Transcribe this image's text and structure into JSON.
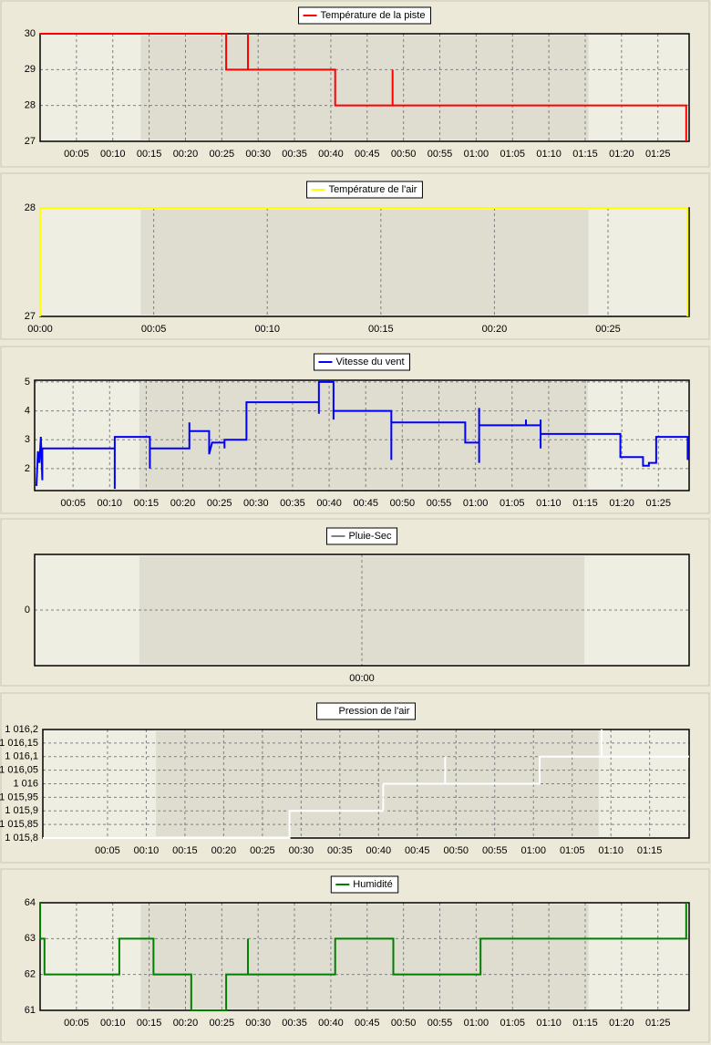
{
  "chart_data": [
    {
      "type": "line",
      "grid": true,
      "xlim": [
        0,
        89.3
      ],
      "ylim": [
        27,
        30
      ],
      "yticks": [
        27,
        28,
        29,
        30
      ],
      "xticks": [
        {
          "value": 5,
          "label": "00:05"
        },
        {
          "value": 10,
          "label": "00:10"
        },
        {
          "value": 15,
          "label": "00:15"
        },
        {
          "value": 20,
          "label": "00:20"
        },
        {
          "value": 25,
          "label": "00:25"
        },
        {
          "value": 30,
          "label": "00:30"
        },
        {
          "value": 35,
          "label": "00:35"
        },
        {
          "value": 40,
          "label": "00:40"
        },
        {
          "value": 45,
          "label": "00:45"
        },
        {
          "value": 50,
          "label": "00:50"
        },
        {
          "value": 55,
          "label": "00:55"
        },
        {
          "value": 60,
          "label": "01:00"
        },
        {
          "value": 65,
          "label": "01:05"
        },
        {
          "value": 70,
          "label": "01:10"
        },
        {
          "value": 75,
          "label": "01:15"
        },
        {
          "value": 80,
          "label": "01:20"
        },
        {
          "value": 85,
          "label": "01:25"
        }
      ],
      "series": [
        {
          "name": "Température de la piste",
          "color": "#ff0000",
          "x": [
            0,
            25.6,
            25.6,
            28.6,
            28.6,
            28.6,
            40.6,
            40.6,
            48.5,
            48.5,
            48.5,
            88.9,
            88.9
          ],
          "values": [
            30,
            30,
            29,
            29,
            30,
            29,
            29,
            28,
            28,
            29,
            28,
            28,
            27
          ]
        }
      ]
    },
    {
      "type": "line",
      "grid": true,
      "xlim": [
        0,
        28.57
      ],
      "ylim": [
        27,
        28
      ],
      "yticks": [
        27,
        28
      ],
      "xticks": [
        {
          "value": 0,
          "label": "00:00"
        },
        {
          "value": 5,
          "label": "00:05"
        },
        {
          "value": 10,
          "label": "00:10"
        },
        {
          "value": 15,
          "label": "00:15"
        },
        {
          "value": 20,
          "label": "00:20"
        },
        {
          "value": 25,
          "label": "00:25"
        }
      ],
      "series": [
        {
          "name": "Température de l'air",
          "color": "#ffff00",
          "x": [
            0,
            0,
            28.5,
            28.5
          ],
          "values": [
            27,
            28,
            28,
            27
          ]
        }
      ]
    },
    {
      "type": "line",
      "grid": true,
      "xlim": [
        -0.25,
        89.2
      ],
      "ylim": [
        1.24,
        5.06
      ],
      "yticks": [
        2,
        3,
        4,
        5
      ],
      "xticks": [
        {
          "value": 5,
          "label": "00:05"
        },
        {
          "value": 10,
          "label": "00:10"
        },
        {
          "value": 15,
          "label": "00:15"
        },
        {
          "value": 20,
          "label": "00:20"
        },
        {
          "value": 25,
          "label": "00:25"
        },
        {
          "value": 30,
          "label": "00:30"
        },
        {
          "value": 35,
          "label": "00:35"
        },
        {
          "value": 40,
          "label": "00:40"
        },
        {
          "value": 45,
          "label": "00:45"
        },
        {
          "value": 50,
          "label": "00:50"
        },
        {
          "value": 55,
          "label": "00:55"
        },
        {
          "value": 60,
          "label": "01:00"
        },
        {
          "value": 65,
          "label": "01:05"
        },
        {
          "value": 70,
          "label": "01:10"
        },
        {
          "value": 75,
          "label": "01:15"
        },
        {
          "value": 80,
          "label": "01:20"
        },
        {
          "value": 85,
          "label": "01:25"
        }
      ],
      "series": [
        {
          "name": "Vitesse du vent",
          "color": "#0000ff",
          "x": [
            0,
            0.2,
            0.4,
            0.6,
            0.8,
            0.8,
            10.7,
            10.7,
            10.7,
            15.5,
            15.5,
            15.5,
            20.9,
            20.9,
            20.9,
            23.6,
            23.6,
            24.0,
            25.7,
            25.7,
            25.7,
            28.7,
            28.7,
            38.6,
            38.6,
            38.6,
            40.6,
            40.6,
            40.6,
            48.5,
            48.5,
            48.5,
            58.6,
            58.6,
            60.5,
            60.5,
            60.5,
            60.5,
            66.9,
            66.9,
            66.9,
            68.9,
            68.9,
            68.9,
            68.9,
            79.8,
            79.8,
            82.9,
            82.9,
            83.7,
            83.7,
            84.7,
            84.7,
            89.0,
            89.0
          ],
          "values": [
            1.4,
            2.6,
            2.2,
            3.1,
            1.6,
            2.7,
            2.7,
            1.3,
            3.1,
            3.1,
            2.0,
            2.7,
            2.7,
            3.6,
            3.3,
            3.3,
            2.5,
            2.9,
            2.9,
            2.7,
            3.0,
            3.0,
            4.3,
            4.3,
            3.9,
            5.0,
            5.0,
            3.7,
            4.0,
            4.0,
            2.3,
            3.6,
            3.6,
            2.9,
            2.9,
            2.2,
            4.1,
            3.5,
            3.5,
            3.7,
            3.5,
            3.5,
            3.7,
            2.7,
            3.2,
            3.2,
            2.4,
            2.4,
            2.1,
            2.1,
            2.2,
            2.2,
            3.1,
            3.1,
            2.3
          ]
        }
      ]
    },
    {
      "type": "line",
      "grid": true,
      "xlim": [
        -1,
        1
      ],
      "ylim": [
        -1,
        1
      ],
      "yticks": [
        0
      ],
      "xticks": [
        {
          "value": 0,
          "label": "00:00"
        }
      ],
      "series": [
        {
          "name": "Pluie-Sec",
          "color": "#808080",
          "x": [],
          "values": []
        }
      ]
    },
    {
      "type": "line",
      "grid": true,
      "xlim": [
        -3.35,
        80.1
      ],
      "ylim": [
        1015.8,
        1016.2
      ],
      "yticks": [
        {
          "value": 1015.8,
          "label": "1 015,8"
        },
        {
          "value": 1015.85,
          "label": "1 015,85"
        },
        {
          "value": 1015.9,
          "label": "1 015,9"
        },
        {
          "value": 1015.95,
          "label": "1 015,95"
        },
        {
          "value": 1016,
          "label": "1 016"
        },
        {
          "value": 1016.05,
          "label": "1 016,05"
        },
        {
          "value": 1016.1,
          "label": "1 016,1"
        },
        {
          "value": 1016.15,
          "label": "1 016,15"
        },
        {
          "value": 1016.2,
          "label": "1 016,2"
        }
      ],
      "xticks": [
        {
          "value": 5,
          "label": "00:05"
        },
        {
          "value": 10,
          "label": "00:10"
        },
        {
          "value": 15,
          "label": "00:15"
        },
        {
          "value": 20,
          "label": "00:20"
        },
        {
          "value": 25,
          "label": "00:25"
        },
        {
          "value": 30,
          "label": "00:30"
        },
        {
          "value": 35,
          "label": "00:35"
        },
        {
          "value": 40,
          "label": "00:40"
        },
        {
          "value": 45,
          "label": "00:45"
        },
        {
          "value": 50,
          "label": "00:50"
        },
        {
          "value": 55,
          "label": "00:55"
        },
        {
          "value": 60,
          "label": "01:00"
        },
        {
          "value": 65,
          "label": "01:05"
        },
        {
          "value": 70,
          "label": "01:10"
        },
        {
          "value": 75,
          "label": "01:15"
        }
      ],
      "series": [
        {
          "name": "Pression de l'air",
          "color": "#ffffff",
          "x": [
            -3.35,
            28.5,
            28.5,
            40.6,
            40.6,
            48.6,
            48.6,
            48.6,
            60.8,
            60.8,
            68.8,
            68.8,
            68.8,
            80.1
          ],
          "values": [
            1015.8,
            1015.8,
            1015.9,
            1015.9,
            1016,
            1016,
            1016.1,
            1016,
            1016,
            1016.1,
            1016.1,
            1016.2,
            1016.1,
            1016.1
          ]
        }
      ]
    },
    {
      "type": "line",
      "grid": true,
      "xlim": [
        0,
        89.3
      ],
      "ylim": [
        61,
        64
      ],
      "yticks": [
        61,
        62,
        63,
        64
      ],
      "xticks": [
        {
          "value": 5,
          "label": "00:05"
        },
        {
          "value": 10,
          "label": "00:10"
        },
        {
          "value": 15,
          "label": "00:15"
        },
        {
          "value": 20,
          "label": "00:20"
        },
        {
          "value": 25,
          "label": "00:25"
        },
        {
          "value": 30,
          "label": "00:30"
        },
        {
          "value": 35,
          "label": "00:35"
        },
        {
          "value": 40,
          "label": "00:40"
        },
        {
          "value": 45,
          "label": "00:45"
        },
        {
          "value": 50,
          "label": "00:50"
        },
        {
          "value": 55,
          "label": "00:55"
        },
        {
          "value": 60,
          "label": "01:00"
        },
        {
          "value": 65,
          "label": "01:05"
        },
        {
          "value": 70,
          "label": "01:10"
        },
        {
          "value": 75,
          "label": "01:15"
        },
        {
          "value": 80,
          "label": "01:20"
        },
        {
          "value": 85,
          "label": "01:25"
        }
      ],
      "series": [
        {
          "name": "Humidité",
          "color": "#008000",
          "x": [
            0,
            0,
            0.6,
            0.6,
            10.9,
            10.9,
            15.6,
            15.6,
            20.8,
            20.8,
            25.6,
            25.6,
            28.6,
            28.6,
            28.6,
            40.6,
            40.6,
            48.6,
            48.6,
            60.6,
            60.6,
            88.9,
            88.9
          ],
          "values": [
            64,
            63,
            63,
            62,
            62,
            63,
            63,
            62,
            62,
            61,
            61,
            62,
            62,
            63,
            62,
            62,
            63,
            63,
            62,
            62,
            63,
            63,
            64
          ]
        }
      ]
    }
  ]
}
